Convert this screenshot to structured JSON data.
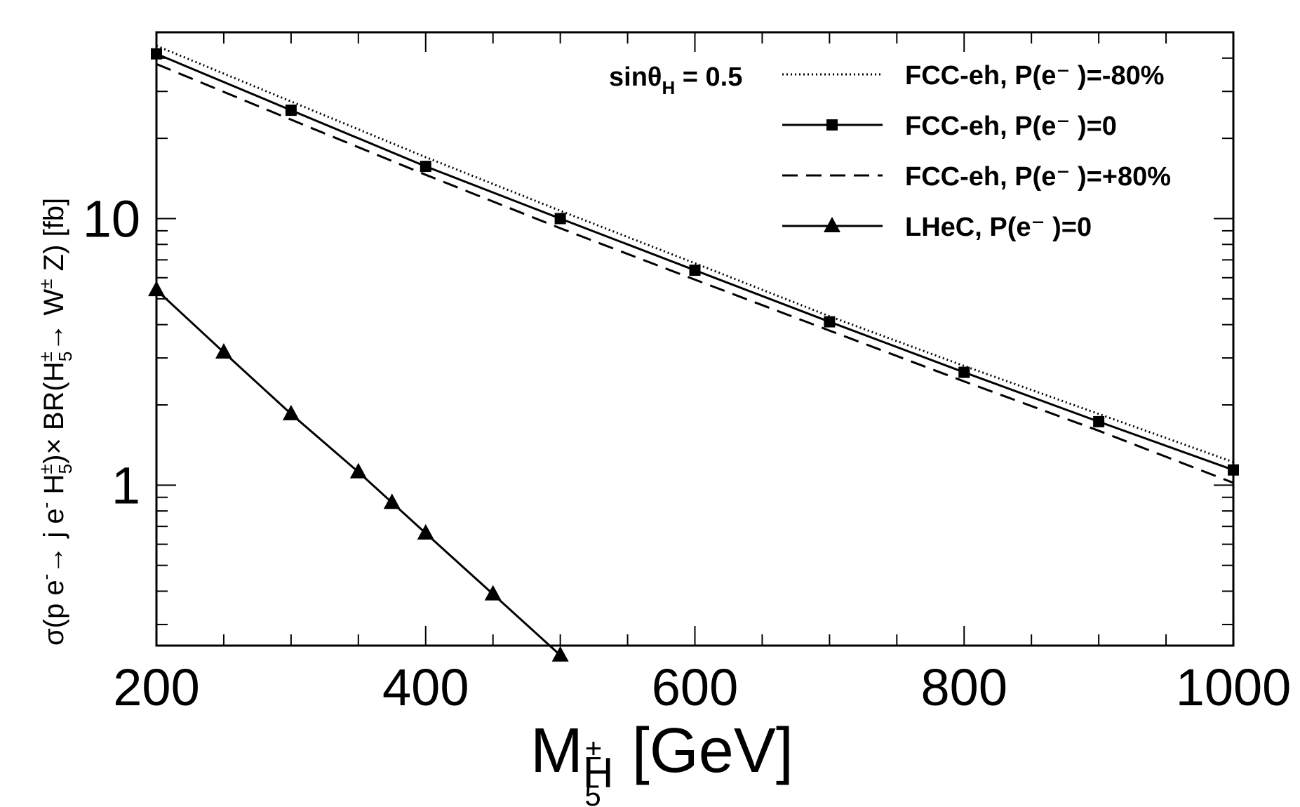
{
  "chart_data": {
    "type": "line",
    "title": "",
    "xlabel": "M",
    "xlabel_sub": "H",
    "xlabel_sub_sup": "±",
    "xlabel_sub_sub": "5",
    "xlabel_unit": "[GeV]",
    "ylabel_parts": {
      "p1": "σ(p e",
      "p1_sup": "-",
      "p2": "→ j e",
      "p2_sup": "-",
      "p3": " H",
      "p3_sup": "±",
      "p3_sub": "5",
      "p4": ")× BR(H",
      "p4_sup": "±",
      "p4_sub": "5",
      "p5": "→ W",
      "p5_sup": "±",
      "p6": " Z)  [fb]"
    },
    "xlim": [
      200,
      1000
    ],
    "ylim": [
      0.25,
      50
    ],
    "yscale": "log",
    "x_ticks": [
      200,
      400,
      600,
      800,
      1000
    ],
    "y_ticks": [
      1,
      10
    ],
    "annotation": {
      "text": "sinθ",
      "sub": "H",
      "rest": " = 0.5"
    },
    "legend_position": "top-right",
    "series": [
      {
        "name": "FCC-eh, P(e⁻ )=-80%",
        "style": "dotted",
        "marker": "none",
        "x": [
          200,
          300,
          400,
          500,
          600,
          700,
          800,
          900,
          1000
        ],
        "y": [
          44.5,
          27.5,
          17.0,
          10.7,
          6.8,
          4.3,
          2.8,
          1.85,
          1.22
        ]
      },
      {
        "name": "FCC-eh, P(e⁻ )=0",
        "style": "solid",
        "marker": "square",
        "x": [
          200,
          300,
          400,
          500,
          600,
          700,
          800,
          900,
          1000
        ],
        "y": [
          41.5,
          25.5,
          15.7,
          10.0,
          6.4,
          4.1,
          2.65,
          1.73,
          1.14
        ]
      },
      {
        "name": "FCC-eh, P(e⁻ )=+80%",
        "style": "dashed",
        "marker": "none",
        "x": [
          200,
          300,
          400,
          500,
          600,
          700,
          800,
          900,
          1000
        ],
        "y": [
          38.0,
          23.5,
          14.6,
          9.2,
          5.9,
          3.8,
          2.45,
          1.6,
          1.02
        ]
      },
      {
        "name": "LHeC,    P(e⁻ )=0",
        "style": "solid",
        "marker": "triangle",
        "x": [
          200,
          250,
          300,
          350,
          375,
          400,
          450,
          500
        ],
        "y": [
          5.4,
          3.15,
          1.85,
          1.12,
          0.86,
          0.66,
          0.39,
          0.23
        ]
      }
    ]
  }
}
